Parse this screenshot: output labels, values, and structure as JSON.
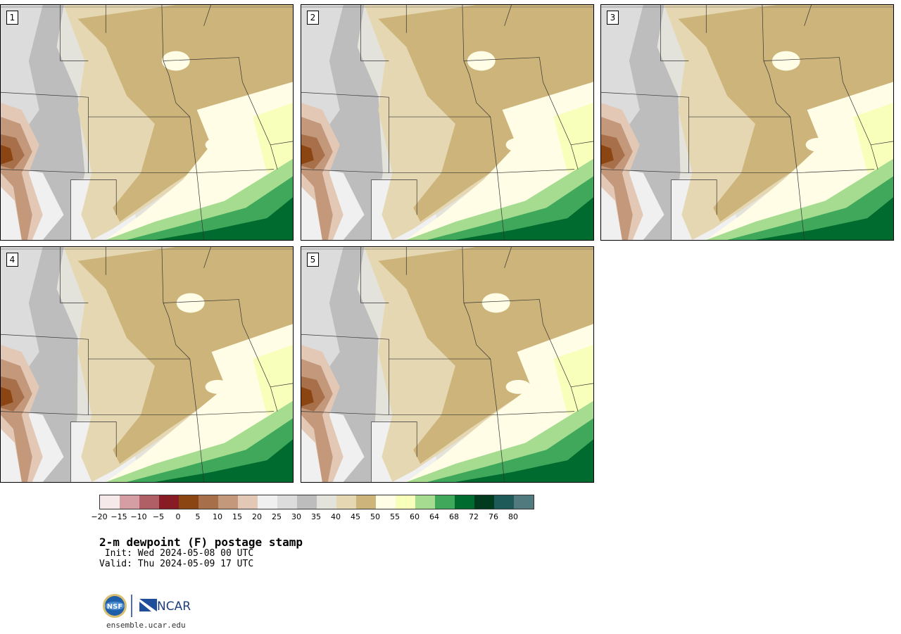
{
  "panels": [
    {
      "label": "1",
      "variant": 0
    },
    {
      "label": "2",
      "variant": 1
    },
    {
      "label": "3",
      "variant": 2
    },
    {
      "label": "4",
      "variant": 3
    },
    {
      "label": "5",
      "variant": 4
    }
  ],
  "colorbar": {
    "colors": [
      "#f5e9ea",
      "#d49ea4",
      "#b05f66",
      "#871c24",
      "#8b4513",
      "#a8704a",
      "#c4987a",
      "#e2c8b5",
      "#f0f0f0",
      "#dcdcdc",
      "#bdbdbd",
      "#e4e3db",
      "#e5d7b2",
      "#ccb47a",
      "#fffde6",
      "#f8ffba",
      "#a5dc90",
      "#3fa85a",
      "#006b2e",
      "#003b20",
      "#1d5a58",
      "#507a7d"
    ],
    "ticks": [
      "−20",
      "−15",
      "−10",
      "−5",
      "0",
      "5",
      "10",
      "15",
      "20",
      "25",
      "30",
      "35",
      "40",
      "45",
      "50",
      "55",
      "60",
      "64",
      "68",
      "72",
      "76",
      "80"
    ]
  },
  "title": "2-m dewpoint (F) postage stamp",
  "init": " Init: Wed 2024-05-08 00 UTC",
  "valid": "Valid: Thu 2024-05-09 17 UTC",
  "logos": {
    "nsf": "NSF",
    "ncar": "NCAR"
  },
  "site": "ensemble.ucar.edu"
}
